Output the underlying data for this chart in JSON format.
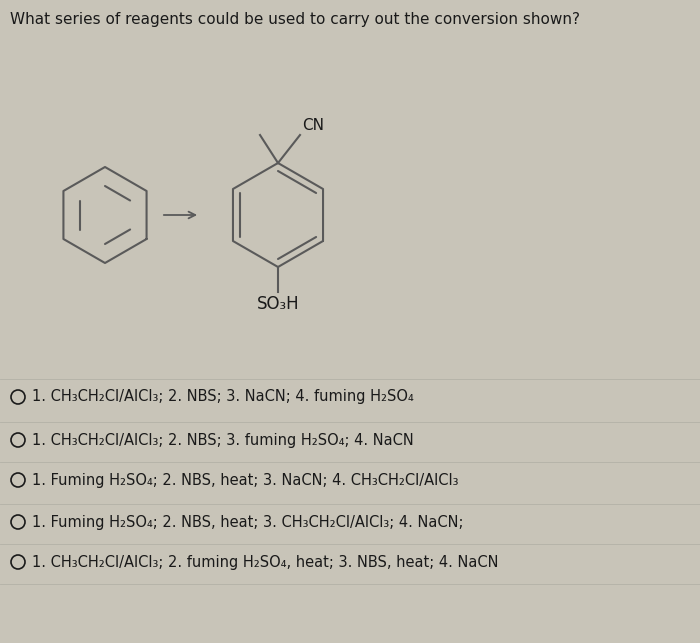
{
  "title": "What series of reagents could be used to carry out the conversion shown?",
  "background_color": "#c8c4b8",
  "text_color": "#1a1a1a",
  "line_color": "#5a5a5a",
  "options": [
    "1. CH₃CH₂Cl/AlCl₃; 2. NBS; 3. NaCN; 4. fuming H₂SO₄",
    "1. CH₃CH₂Cl/AlCl₃; 2. NBS; 3. fuming H₂SO₄; 4. NaCN",
    "1. Fuming H₂SO₄; 2. NBS, heat; 3. NaCN; 4. CH₃CH₂Cl/AlCl₃",
    "1. Fuming H₂SO₄; 2. NBS, heat; 3. CH₃CH₂Cl/AlCl₃; 4. NaCN;",
    "1. CH₃CH₂Cl/AlCl₃; 2. fuming H₂SO₄, heat; 3. NBS, heat; 4. NaCN"
  ],
  "fig_width": 7.0,
  "fig_height": 6.43,
  "dpi": 100
}
